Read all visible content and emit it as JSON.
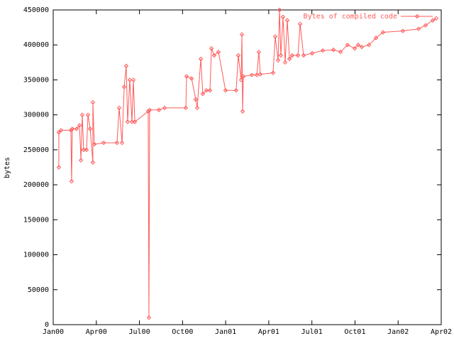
{
  "chart_data": {
    "type": "line",
    "y_label": "bytes",
    "x": [
      0.39,
      0.39,
      0.54,
      1.23,
      1.28,
      1.33,
      1.63,
      1.83,
      1.93,
      2.02,
      2.12,
      2.32,
      2.42,
      2.57,
      2.76,
      2.76,
      2.86,
      3.51,
      4.44,
      4.59,
      4.79,
      4.94,
      5.08,
      5.18,
      5.33,
      5.48,
      5.58,
      5.68,
      6.61,
      6.66,
      6.71,
      7.35,
      7.75,
      9.23,
      9.28,
      9.63,
      9.92,
      10.02,
      10.27,
      10.41,
      10.66,
      10.91,
      11.01,
      11.2,
      11.5,
      11.99,
      12.73,
      12.88,
      13.08,
      13.13,
      13.18,
      13.23,
      13.82,
      14.17,
      14.31,
      14.41,
      15.3,
      15.45,
      15.65,
      15.75,
      15.84,
      15.99,
      16.14,
      16.29,
      16.44,
      16.63,
      17.03,
      17.18,
      17.42,
      18.02,
      18.76,
      19.5,
      19.99,
      20.48,
      20.98,
      21.22,
      21.47,
      21.97,
      22.46,
      22.95,
      24.33,
      25.42,
      25.91,
      26.41,
      26.65
    ],
    "series": [
      {
        "name": "Bytes of compiled code",
        "color": "#ff5a5a",
        "values": [
          225000,
          275000,
          278000,
          278000,
          205000,
          280000,
          280000,
          285000,
          235000,
          300000,
          250000,
          250000,
          300000,
          280000,
          232000,
          318000,
          258000,
          260000,
          260000,
          310000,
          260000,
          340000,
          370000,
          290000,
          350000,
          290000,
          350000,
          290000,
          305000,
          10000,
          307000,
          307000,
          310000,
          310000,
          355000,
          352000,
          322000,
          310000,
          380000,
          330000,
          335000,
          335000,
          395000,
          385000,
          390000,
          335000,
          335000,
          385000,
          350000,
          415000,
          305000,
          355000,
          357000,
          357000,
          390000,
          358000,
          360000,
          412000,
          378000,
          450000,
          385000,
          440000,
          375000,
          435000,
          380000,
          385000,
          385000,
          430000,
          385000,
          388000,
          392000,
          393000,
          390000,
          400000,
          395000,
          400000,
          397000,
          400000,
          410000,
          418000,
          420000,
          423000,
          428000,
          435000,
          438000
        ]
      }
    ],
    "xlim": [
      0,
      27
    ],
    "xticks": [
      {
        "value": 0,
        "label": "Jan00"
      },
      {
        "value": 3,
        "label": "Apr00"
      },
      {
        "value": 6,
        "label": "Jul00"
      },
      {
        "value": 9,
        "label": "Oct00"
      },
      {
        "value": 12,
        "label": "Jan01"
      },
      {
        "value": 15,
        "label": "Apr01"
      },
      {
        "value": 18,
        "label": "Jul01"
      },
      {
        "value": 21,
        "label": "Oct01"
      },
      {
        "value": 24,
        "label": "Jan02"
      },
      {
        "value": 27,
        "label": "Apr02"
      }
    ],
    "ylim": [
      0,
      450000
    ],
    "yticks": [
      0,
      50000,
      100000,
      150000,
      200000,
      250000,
      300000,
      350000,
      400000,
      450000
    ],
    "grid": false,
    "legend": "top-right"
  }
}
